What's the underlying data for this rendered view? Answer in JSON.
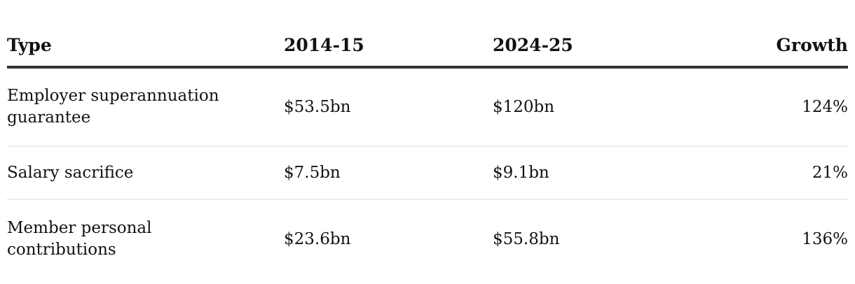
{
  "chart_data": {
    "type": "table",
    "title": "",
    "columns": [
      "Type",
      "2014-15",
      "2024-25",
      "Growth"
    ],
    "rows": [
      [
        "Employer superannuation guarantee",
        "$53.5bn",
        "$120bn",
        "124%"
      ],
      [
        "Salary sacrifice",
        "$7.5bn",
        "$9.1bn",
        "21%"
      ],
      [
        "Member personal contributions",
        "$23.6bn",
        "$55.8bn",
        "136%"
      ]
    ],
    "layout_hints": {
      "header_align": [
        "left",
        "left",
        "left",
        "right"
      ],
      "body_align": [
        "left",
        "left",
        "left",
        "right"
      ],
      "header_rule": "thick dark line below header",
      "row_dividers": "thin light gray lines between body rows"
    }
  },
  "colors": {
    "text": "#121212",
    "header_border": "#343434",
    "row_divider": "#ececec",
    "background": "#ffffff"
  }
}
